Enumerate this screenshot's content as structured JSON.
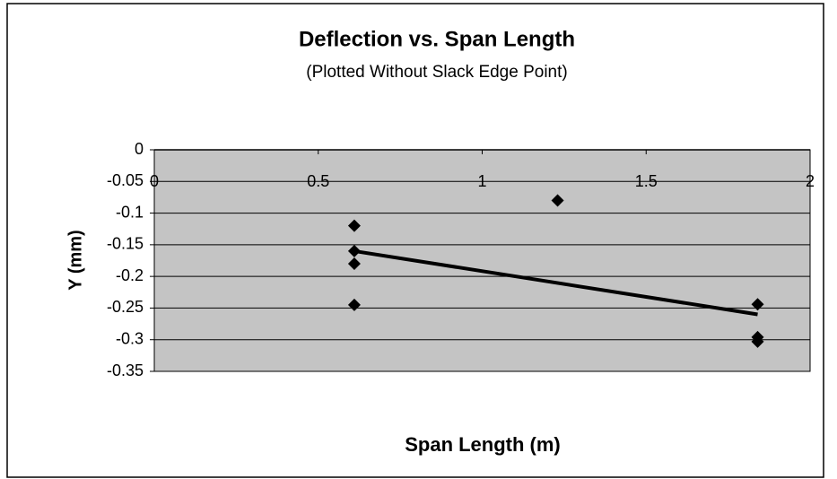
{
  "chart_data": {
    "type": "scatter",
    "title": "Deflection vs. Span Length",
    "subtitle": "(Plotted Without Slack Edge Point)",
    "x_label": "Span Length (m)",
    "y_label": "Y (mm)",
    "series": [
      {
        "kind": "markers",
        "marker": "diamond",
        "color": "#000000",
        "x": [
          0.61,
          0.61,
          0.61,
          0.61,
          1.23,
          1.84,
          1.84,
          1.84
        ],
        "values": [
          -0.12,
          -0.16,
          -0.18,
          -0.245,
          -0.08,
          -0.244,
          -0.296,
          -0.303
        ]
      },
      {
        "kind": "line",
        "color": "#000000",
        "x": [
          0.61,
          1.84
        ],
        "values": [
          -0.16,
          -0.26
        ]
      }
    ],
    "xlim": [
      0,
      2
    ],
    "xticks": [
      0,
      0.5,
      1,
      1.5,
      2
    ],
    "ylim": [
      -0.35,
      0
    ],
    "yticks": [
      0,
      -0.05,
      -0.1,
      -0.15,
      -0.2,
      -0.25,
      -0.3,
      -0.35
    ],
    "grid": true,
    "plot_background": "#c4c4c4"
  }
}
